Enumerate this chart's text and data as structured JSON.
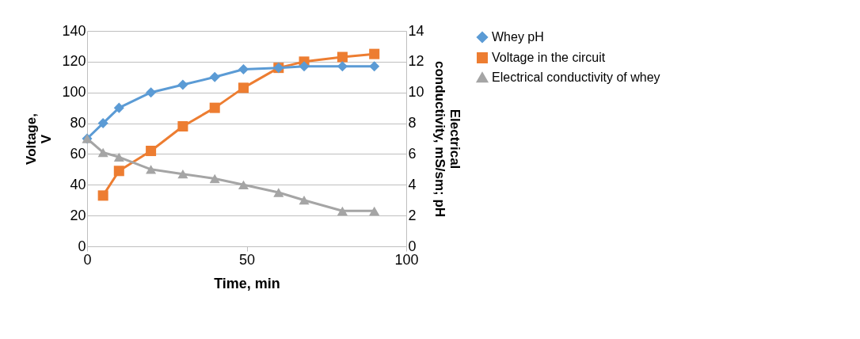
{
  "chart_data": {
    "type": "line",
    "xlabel": "Time, min",
    "ylabel": "Voltage, V",
    "y2label": "Electrical conductivity, mS/sm; pH",
    "x": [
      0,
      5,
      10,
      20,
      30,
      40,
      49,
      60,
      68,
      80,
      90
    ],
    "xlim": [
      0,
      100
    ],
    "xticks": [
      0,
      50,
      100
    ],
    "ylim": [
      0,
      140
    ],
    "yticks": [
      0,
      20,
      40,
      60,
      80,
      100,
      120,
      140
    ],
    "y2lim": [
      0,
      14
    ],
    "y2ticks": [
      0,
      2,
      4,
      6,
      8,
      10,
      12,
      14
    ],
    "grid": "y",
    "legend": "right",
    "series": [
      {
        "name": "Whey pH",
        "color": "#5b9bd5",
        "axis": "y2",
        "marker": "diamond",
        "values": [
          7.0,
          8.0,
          9.0,
          10.0,
          10.5,
          11.0,
          11.5,
          11.6,
          11.7,
          11.7,
          11.7
        ]
      },
      {
        "name": "Voltage in the circuit",
        "color": "#ed7d31",
        "axis": "y",
        "marker": "square",
        "values": [
          null,
          33,
          49,
          62,
          78,
          90,
          103,
          116,
          120,
          123,
          125
        ]
      },
      {
        "name": "Electrical conductivity of whey",
        "color": "#a5a5a5",
        "axis": "y2",
        "marker": "triangle",
        "values": [
          7.0,
          6.1,
          5.8,
          5.0,
          4.7,
          4.4,
          4.0,
          3.5,
          3.0,
          2.3,
          2.3
        ]
      }
    ]
  }
}
